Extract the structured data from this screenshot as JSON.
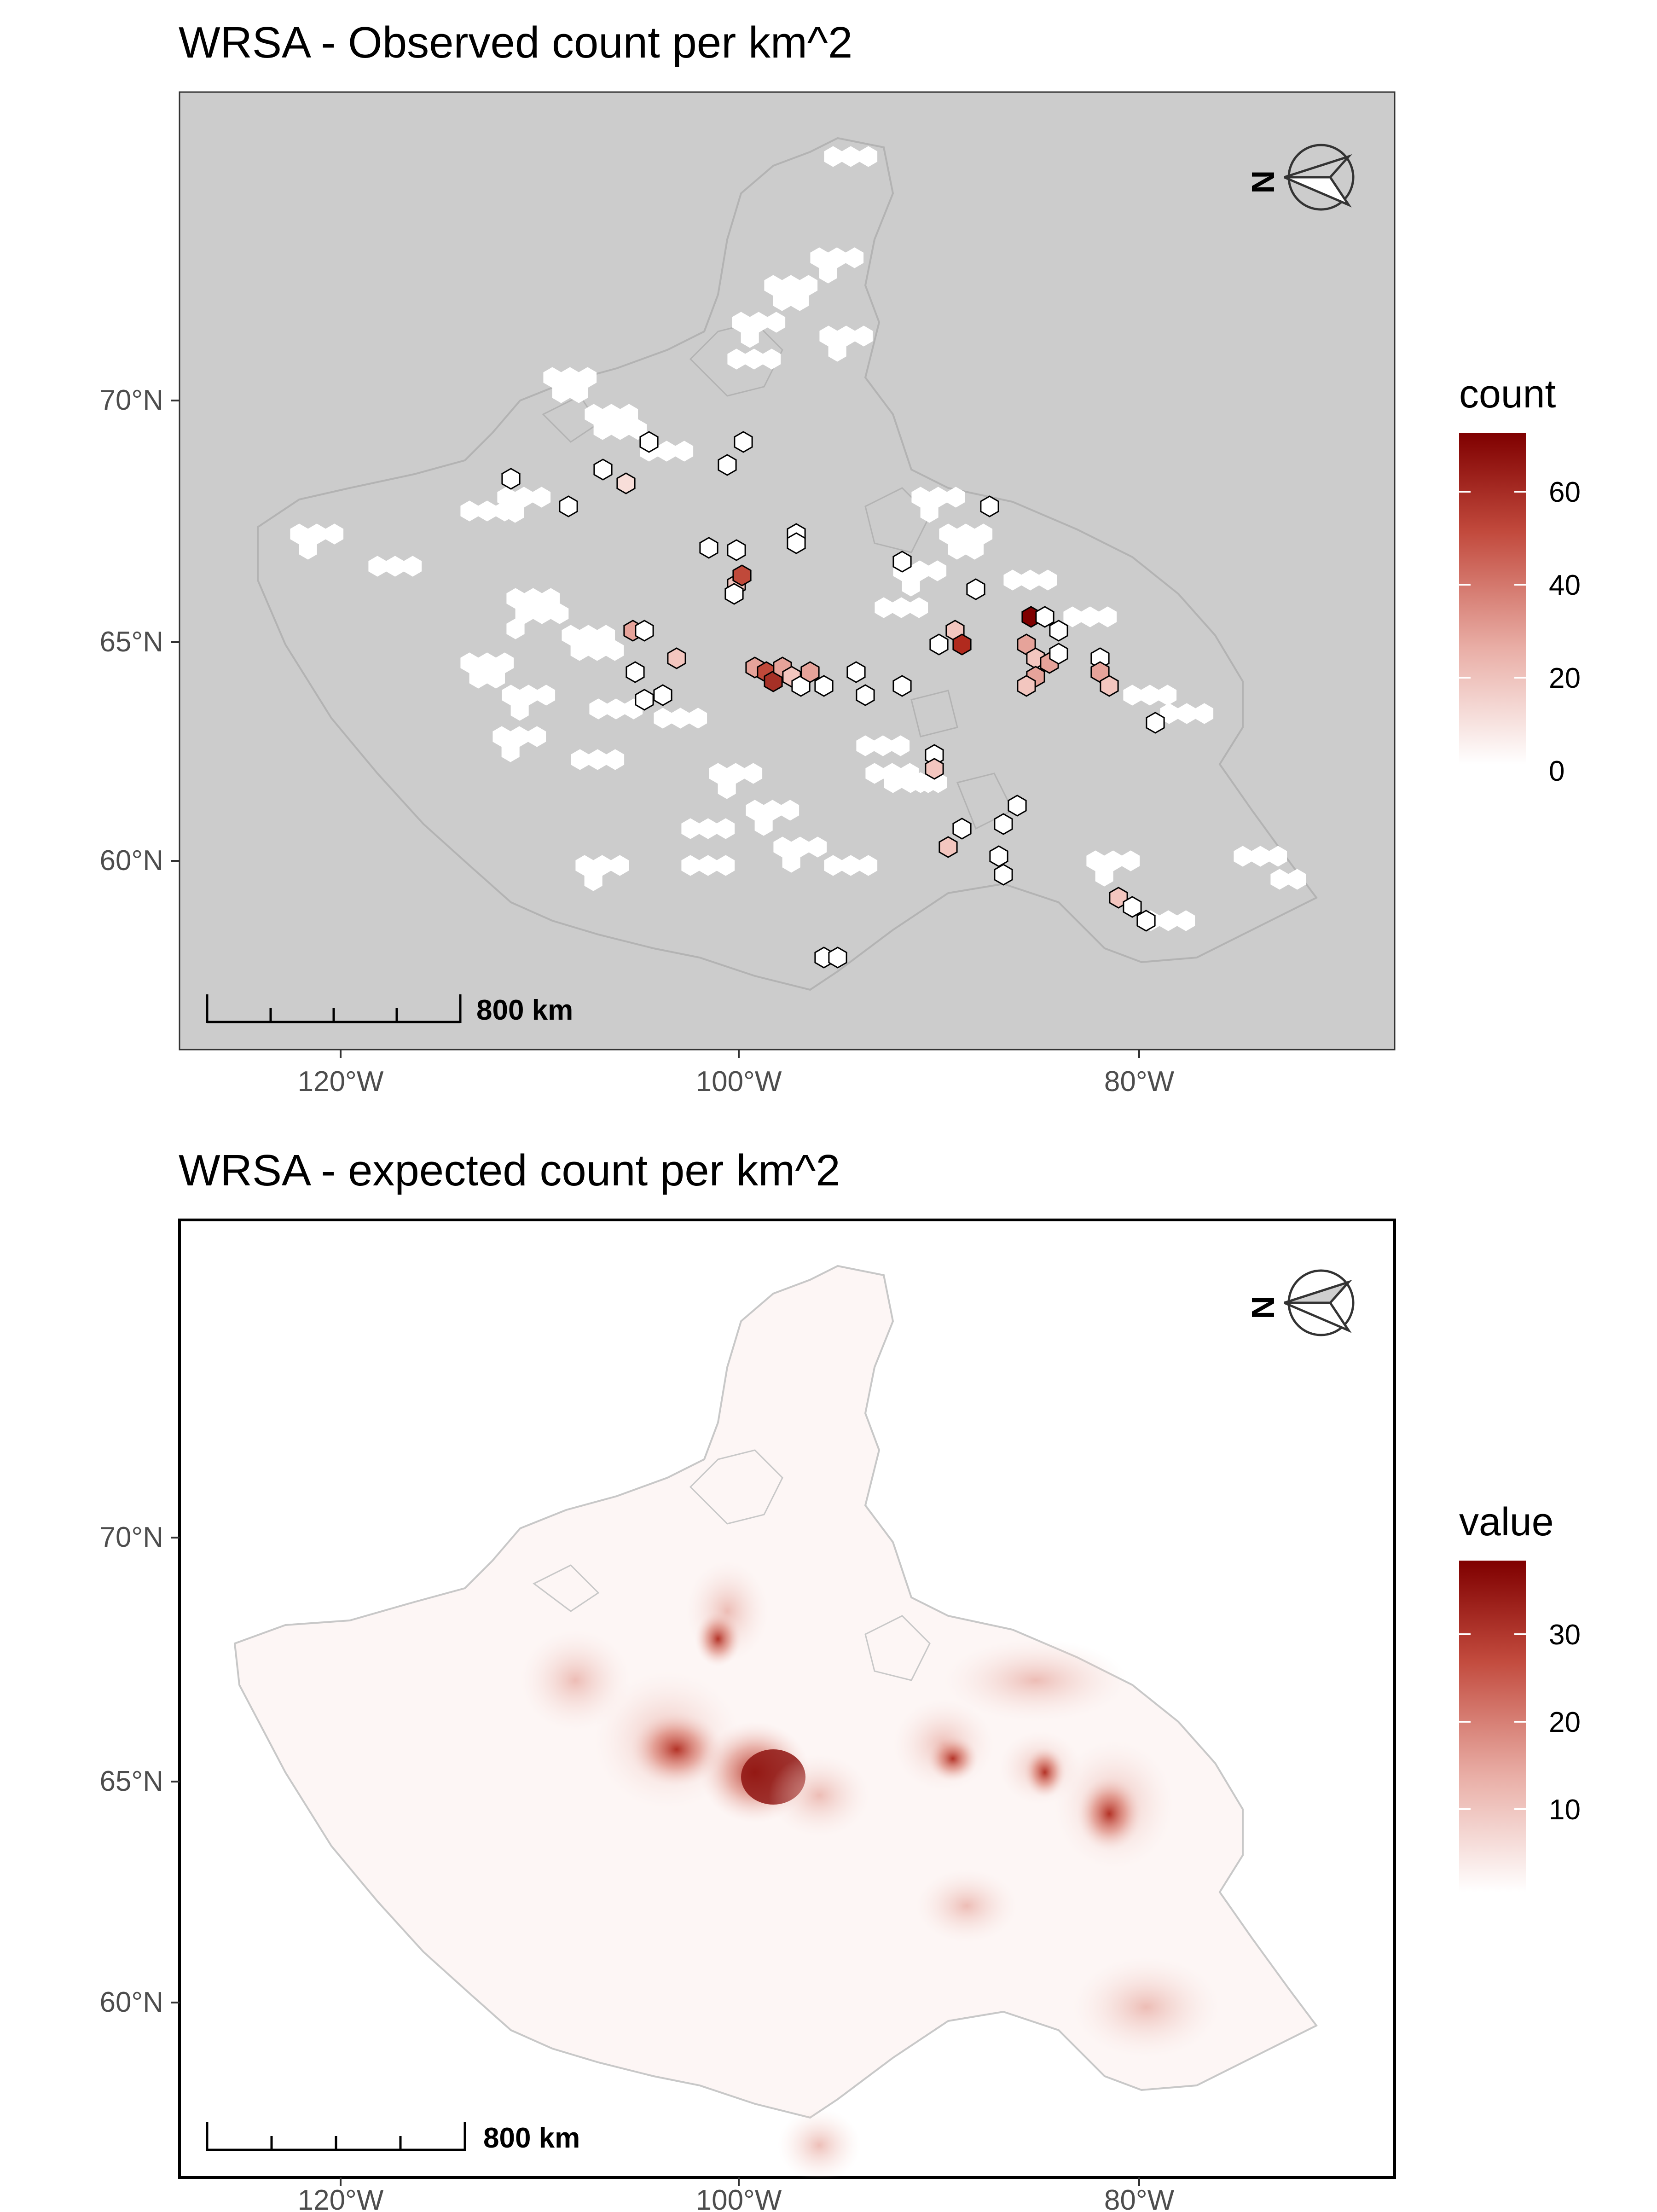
{
  "panels": [
    {
      "title": "WRSA - Observed count per km^2",
      "x_ticks": [
        "120°W",
        "100°W",
        "80°W"
      ],
      "y_ticks": [
        "70°N",
        "65°N",
        "60°N"
      ],
      "scale_bar": "800 km",
      "legend": {
        "title": "count",
        "ticks": [
          "60",
          "40",
          "20",
          "0"
        ],
        "range": [
          0,
          72
        ],
        "colors": [
          "#ffffff",
          "#e6a39a",
          "#c0493a",
          "#7f0000"
        ]
      },
      "background": "#cccccc"
    },
    {
      "title": "WRSA - expected count per km^2",
      "x_ticks": [
        "120°W",
        "100°W",
        "80°W"
      ],
      "y_ticks": [
        "70°N",
        "65°N",
        "60°N"
      ],
      "scale_bar": "800 km",
      "legend": {
        "title": "value",
        "ticks": [
          "30",
          "20",
          "10"
        ],
        "range": [
          0,
          38
        ],
        "colors": [
          "#ffffff",
          "#e6a39a",
          "#c0493a",
          "#7f0000"
        ]
      },
      "background": "#ffffff"
    }
  ],
  "icons": [
    "north-arrow-icon",
    "north-arrow-icon"
  ],
  "colors": {
    "land_outline": "#b3b3b3",
    "hex_stroke": "#000000",
    "zero_hex": "#ffffff"
  }
}
